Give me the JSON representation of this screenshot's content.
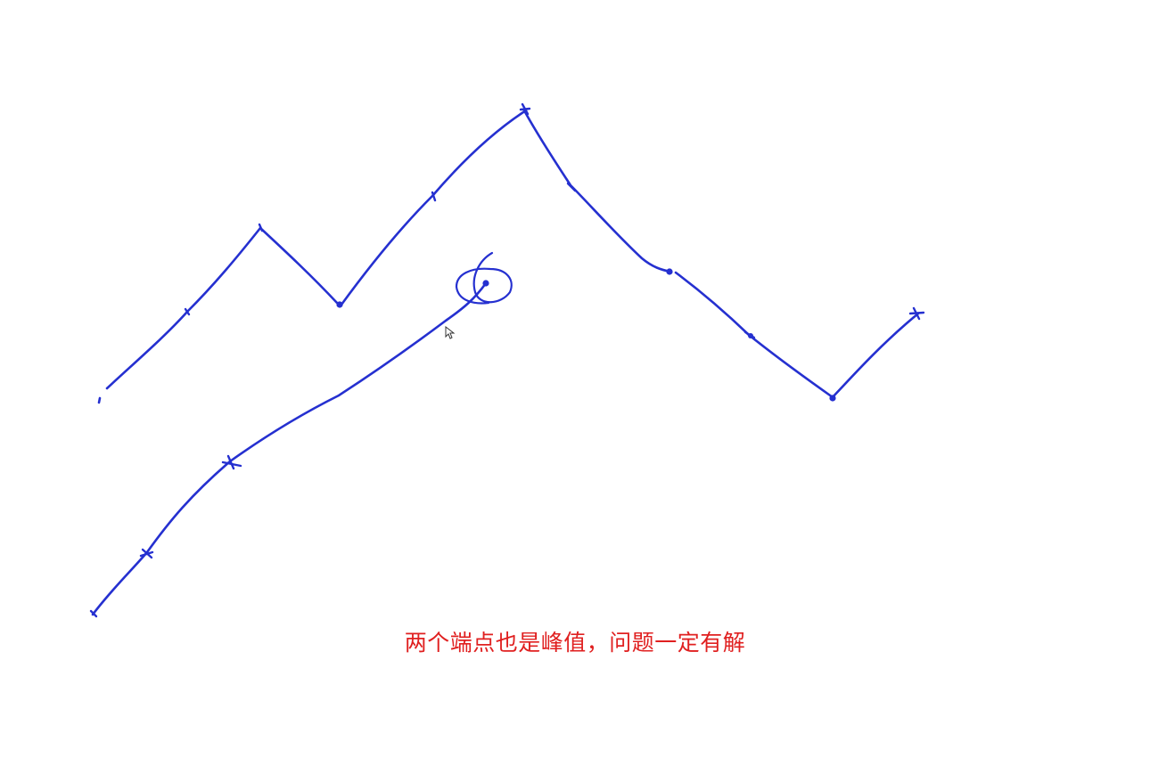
{
  "colors": {
    "ink": "#2530d0",
    "subtitle": "#e02020",
    "background": "#ffffff"
  },
  "subtitle": "两个端点也是峰值，问题一定有解",
  "icons": {
    "cursor": "mouse-pointer-icon"
  }
}
